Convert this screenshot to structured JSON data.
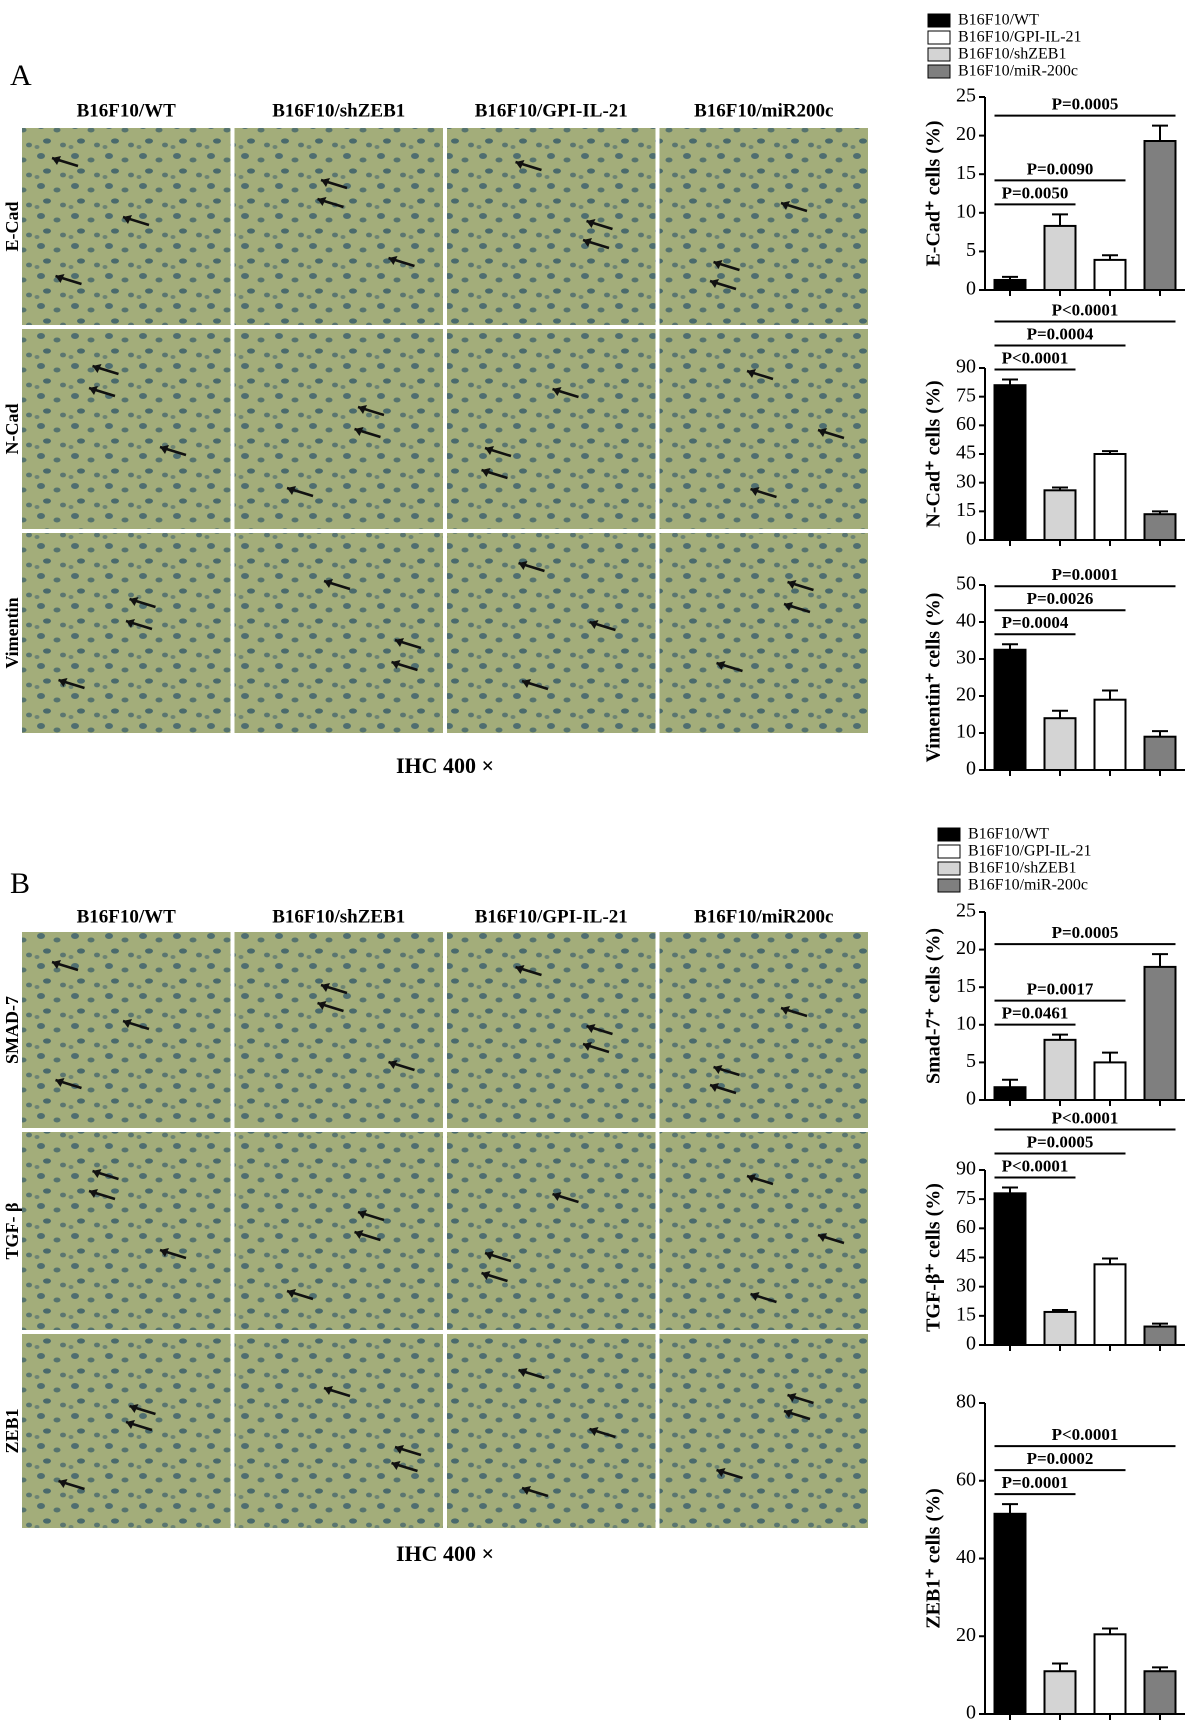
{
  "figure": [
    {
      "label": "A",
      "columns": [
        "B16F10/WT",
        "B16F10/shZEB1",
        "B16F10/GPI-IL-21",
        "B16F10/miR200c"
      ],
      "rows": [
        "E-Cad",
        "N-Cad",
        "Vimentin"
      ],
      "caption": "IHC 400 ×",
      "legend": [
        {
          "name": "B16F10/WT",
          "color": "#000000"
        },
        {
          "name": "B16F10/GPI-IL-21",
          "color": "#ffffff"
        },
        {
          "name": "B16F10/shZEB1",
          "color": "#d4d4d4"
        },
        {
          "name": "B16F10/miR-200c",
          "color": "#7f7f7f"
        }
      ]
    },
    {
      "label": "B",
      "columns": [
        "B16F10/WT",
        "B16F10/shZEB1",
        "B16F10/GPI-IL-21",
        "B16F10/miR200c"
      ],
      "rows": [
        "SMAD-7",
        "TGF- β",
        "ZEB1"
      ],
      "caption": "IHC 400 ×",
      "legend": [
        {
          "name": "B16F10/WT",
          "color": "#000000"
        },
        {
          "name": "B16F10/GPI-IL-21",
          "color": "#ffffff"
        },
        {
          "name": "B16F10/shZEB1",
          "color": "#d4d4d4"
        },
        {
          "name": "B16F10/miR-200c",
          "color": "#7f7f7f"
        }
      ]
    }
  ],
  "chart_data": [
    {
      "type": "bar",
      "ylabel": "E-Cad⁺ cells (%)",
      "categories": [
        null,
        null,
        null,
        null
      ],
      "values": [
        1.3,
        8.3,
        3.9,
        19.3
      ],
      "errors": [
        0.4,
        1.5,
        0.6,
        2.0
      ],
      "colors": [
        "#000000",
        "#d4d4d4",
        "#ffffff",
        "#7f7f7f"
      ],
      "ylim": [
        0,
        25
      ],
      "yticks": [
        0,
        5,
        10,
        15,
        20,
        25
      ],
      "annotations": [
        "P=0.0050",
        "P=0.0090",
        "P=0.0005"
      ]
    },
    {
      "type": "bar",
      "ylabel": "N-Cad⁺ cells (%)",
      "categories": [
        null,
        null,
        null,
        null
      ],
      "values": [
        81,
        26,
        45,
        13.5
      ],
      "errors": [
        3,
        1.5,
        1.5,
        1.5
      ],
      "colors": [
        "#000000",
        "#d4d4d4",
        "#ffffff",
        "#7f7f7f"
      ],
      "ylim": [
        0,
        90
      ],
      "yticks": [
        0,
        15,
        30,
        45,
        60,
        75,
        90
      ],
      "annotations": [
        "P<0.0001",
        "P=0.0004",
        "P<0.0001"
      ]
    },
    {
      "type": "bar",
      "ylabel": "Vimentin⁺ cells (%)",
      "categories": [
        null,
        null,
        null,
        null
      ],
      "values": [
        32.5,
        14,
        19,
        9
      ],
      "errors": [
        1.5,
        2,
        2.5,
        1.5
      ],
      "colors": [
        "#000000",
        "#d4d4d4",
        "#ffffff",
        "#7f7f7f"
      ],
      "ylim": [
        0,
        50
      ],
      "yticks": [
        0,
        10,
        20,
        30,
        40,
        50
      ],
      "annotations": [
        "P=0.0004",
        "P=0.0026",
        "P=0.0001"
      ]
    },
    {
      "type": "bar",
      "ylabel": "Smad-7⁺ cells (%)",
      "categories": [
        null,
        null,
        null,
        null
      ],
      "values": [
        1.7,
        8,
        5,
        17.7
      ],
      "errors": [
        1,
        0.7,
        1.3,
        1.7
      ],
      "colors": [
        "#000000",
        "#d4d4d4",
        "#ffffff",
        "#7f7f7f"
      ],
      "ylim": [
        0,
        25
      ],
      "yticks": [
        0,
        5,
        10,
        15,
        20,
        25
      ],
      "annotations": [
        "P=0.0461",
        "P=0.0017",
        "P=0.0005"
      ]
    },
    {
      "type": "bar",
      "ylabel": "TGF-β⁺ cells (%)",
      "categories": [
        null,
        null,
        null,
        null
      ],
      "values": [
        78,
        17,
        41.5,
        9.5
      ],
      "errors": [
        3,
        1,
        3,
        1.5
      ],
      "colors": [
        "#000000",
        "#d4d4d4",
        "#ffffff",
        "#7f7f7f"
      ],
      "ylim": [
        0,
        90
      ],
      "yticks": [
        0,
        15,
        30,
        45,
        60,
        75,
        90
      ],
      "annotations": [
        "P<0.0001",
        "P=0.0005",
        "P<0.0001"
      ]
    },
    {
      "type": "bar",
      "ylabel": "ZEB1⁺ cells (%)",
      "categories": [
        null,
        null,
        null,
        null
      ],
      "values": [
        51.5,
        11,
        20.5,
        11
      ],
      "errors": [
        2.5,
        2,
        1.5,
        1
      ],
      "colors": [
        "#000000",
        "#d4d4d4",
        "#ffffff",
        "#7f7f7f"
      ],
      "ylim": [
        0,
        80
      ],
      "yticks": [
        0,
        20,
        40,
        60,
        80
      ],
      "annotations": [
        "P=0.0001",
        "P=0.0002",
        "P<0.0001"
      ]
    }
  ]
}
